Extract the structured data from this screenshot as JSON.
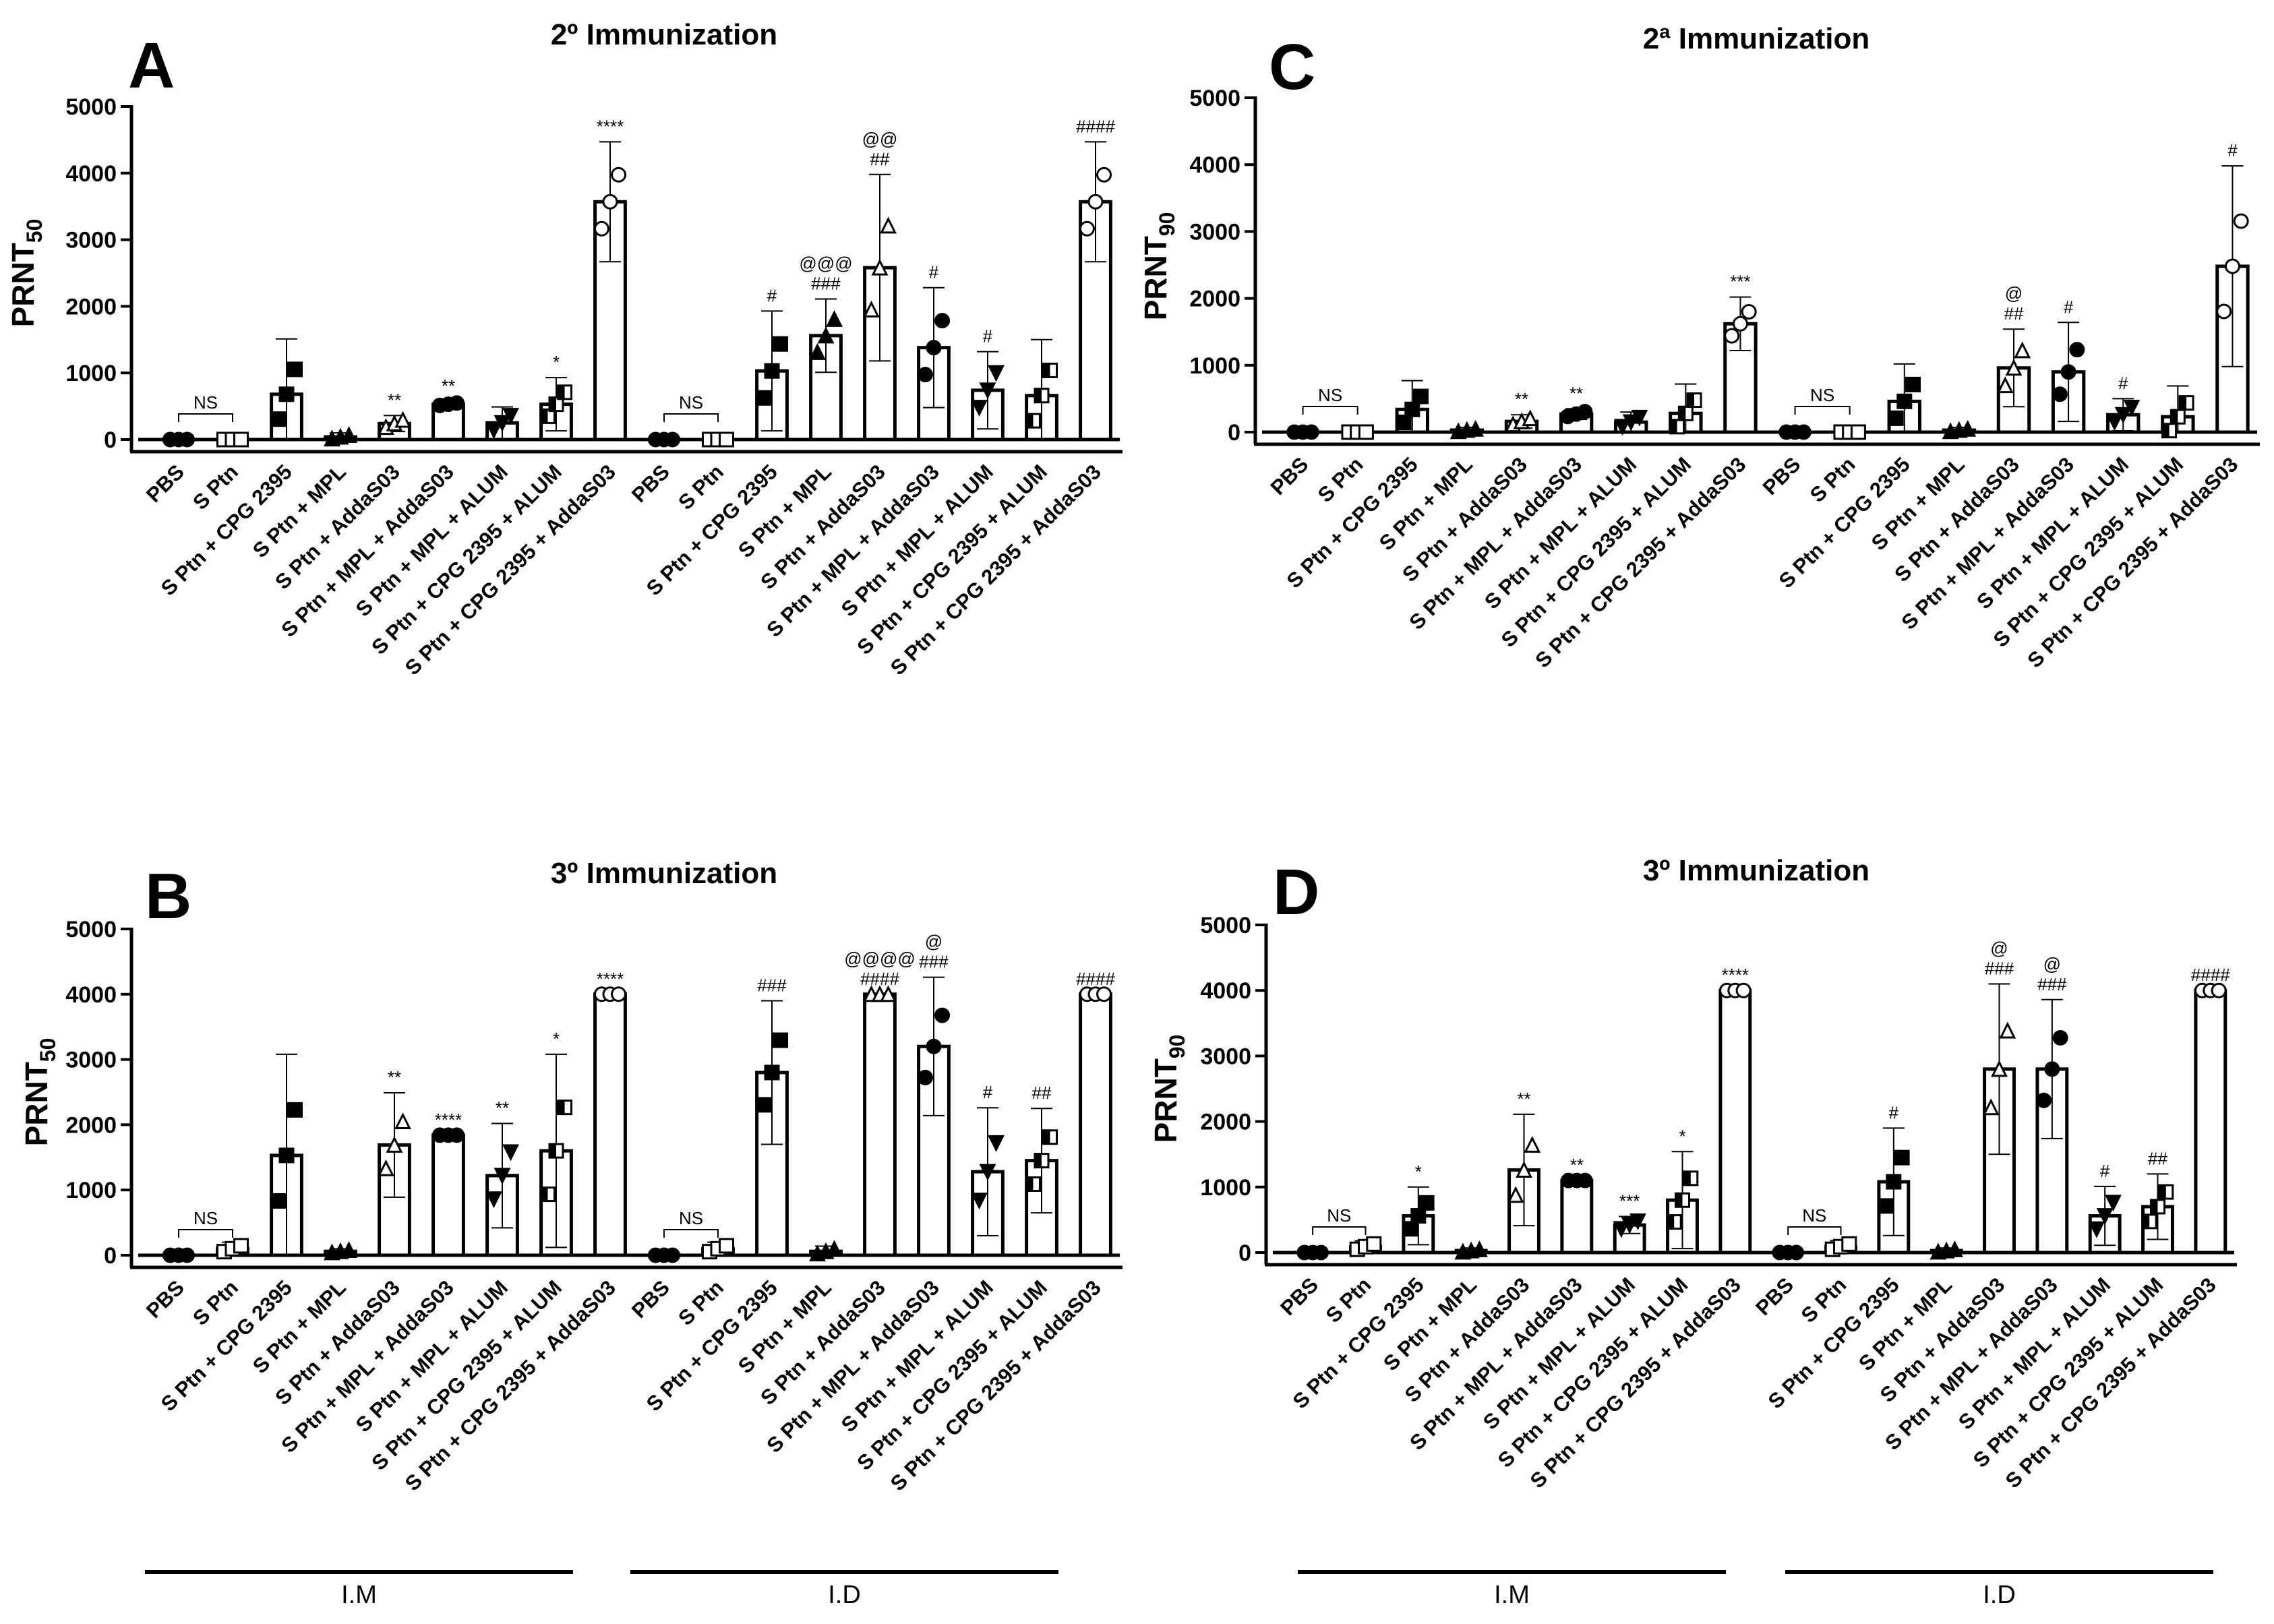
{
  "routes": {
    "im": "I.M",
    "id": "I.D"
  },
  "chart_data": [
    {
      "panel": "A",
      "type": "bar",
      "title": "2º Immunization",
      "ylabel": "PRNT",
      "ylabel_sub": "50",
      "ylim": [
        0,
        5000
      ],
      "yticks": [
        0,
        1000,
        2000,
        3000,
        4000,
        5000
      ],
      "ns_label": "NS",
      "categories": [
        "PBS",
        "S Ptn",
        "S Ptn + CPG 2395",
        "S Ptn + MPL",
        "S Ptn + AddaS03",
        "S Ptn + MPL + AddaS03",
        "S Ptn + MPL + ALUM",
        "S Ptn + CPG 2395 + ALUM",
        "S Ptn + CPG 2395 + AddaS03",
        "PBS",
        "S Ptn",
        "S Ptn + CPG 2395",
        "S Ptn + MPL",
        "S Ptn + AddaS03",
        "S Ptn + MPL + AddaS03",
        "S Ptn + MPL + ALUM",
        "S Ptn + CPG 2395 + ALUM",
        "S Ptn + CPG 2395 + AddaS03"
      ],
      "values": [
        0,
        0,
        680,
        40,
        240,
        530,
        250,
        530,
        3570,
        0,
        0,
        1030,
        1560,
        2580,
        1380,
        740,
        660,
        3570
      ],
      "errors": [
        0,
        0,
        830,
        60,
        120,
        40,
        240,
        400,
        900,
        0,
        0,
        900,
        550,
        1400,
        900,
        580,
        840,
        900
      ],
      "significance_top": [
        "",
        "",
        "",
        "",
        "**",
        "**",
        "",
        "*",
        "****",
        "",
        "",
        "#",
        "###",
        "##",
        "#",
        "#",
        "",
        "####"
      ],
      "significance_at": [
        "",
        "",
        "",
        "",
        "",
        "",
        "",
        "",
        "",
        "",
        "",
        "",
        "@@@",
        "@@",
        "",
        "",
        "",
        ""
      ]
    },
    {
      "panel": "B",
      "type": "bar",
      "title": "3º Immunization",
      "ylabel": "PRNT",
      "ylabel_sub": "50",
      "ylim": [
        0,
        5000
      ],
      "yticks": [
        0,
        1000,
        2000,
        3000,
        4000,
        5000
      ],
      "ns_label": "NS",
      "categories": [
        "PBS",
        "S Ptn",
        "S Ptn + CPG 2395",
        "S Ptn + MPL",
        "S Ptn + AddaS03",
        "S Ptn + MPL + AddaS03",
        "S Ptn + MPL + ALUM",
        "S Ptn + CPG 2395 + ALUM",
        "S Ptn + CPG 2395 + AddaS03",
        "PBS",
        "S Ptn",
        "S Ptn + CPG 2395",
        "S Ptn + MPL",
        "S Ptn + AddaS03",
        "S Ptn + MPL + AddaS03",
        "S Ptn + MPL + ALUM",
        "S Ptn + CPG 2395 + ALUM",
        "S Ptn + CPG 2395 + AddaS03"
      ],
      "values": [
        0,
        100,
        1530,
        60,
        1690,
        1840,
        1220,
        1600,
        4000,
        0,
        100,
        2800,
        60,
        4000,
        3200,
        1280,
        1450,
        4000
      ],
      "errors": [
        0,
        100,
        1550,
        40,
        800,
        0,
        800,
        1480,
        0,
        0,
        100,
        1100,
        80,
        0,
        1060,
        980,
        800,
        0
      ],
      "significance_top": [
        "",
        "",
        "",
        "",
        "**",
        "****",
        "**",
        "*",
        "****",
        "",
        "",
        "###",
        "",
        "####",
        "###",
        "#",
        "##",
        "####"
      ],
      "significance_at": [
        "",
        "",
        "",
        "",
        "",
        "",
        "",
        "",
        "",
        "",
        "",
        "",
        "",
        "@@@@",
        "@",
        "",
        "",
        ""
      ]
    },
    {
      "panel": "C",
      "type": "bar",
      "title": "2ª Immunization",
      "ylabel": "PRNT",
      "ylabel_sub": "90",
      "ylim": [
        0,
        5000
      ],
      "yticks": [
        0,
        1000,
        2000,
        3000,
        4000,
        5000
      ],
      "ns_label": "NS",
      "categories": [
        "PBS",
        "S Ptn",
        "S Ptn + CPG 2395",
        "S Ptn + MPL",
        "S Ptn + AddaS03",
        "S Ptn + MPL + AddaS03",
        "S Ptn + MPL + ALUM",
        "S Ptn + CPG 2395 + ALUM",
        "S Ptn + CPG 2395 + AddaS03",
        "PBS",
        "S Ptn",
        "S Ptn + CPG 2395",
        "S Ptn + MPL",
        "S Ptn + AddaS03",
        "S Ptn + MPL + AddaS03",
        "S Ptn + MPL + ALUM",
        "S Ptn + CPG 2395 + ALUM",
        "S Ptn + CPG 2395 + AddaS03"
      ],
      "values": [
        0,
        0,
        340,
        30,
        160,
        270,
        150,
        280,
        1620,
        0,
        0,
        460,
        30,
        960,
        900,
        260,
        230,
        2480
      ],
      "errors": [
        0,
        0,
        430,
        40,
        100,
        80,
        150,
        440,
        400,
        0,
        0,
        560,
        40,
        580,
        740,
        240,
        460,
        1500
      ],
      "significance_top": [
        "",
        "",
        "",
        "",
        "**",
        "**",
        "",
        "",
        "***",
        "",
        "",
        "",
        "",
        "##",
        "#",
        "#",
        "",
        "#"
      ],
      "significance_at": [
        "",
        "",
        "",
        "",
        "",
        "",
        "",
        "",
        "",
        "",
        "",
        "",
        "",
        "@",
        "",
        "",
        "",
        ""
      ]
    },
    {
      "panel": "D",
      "type": "bar",
      "title": "3º Immunization",
      "ylabel": "PRNT",
      "ylabel_sub": "90",
      "ylim": [
        0,
        5000
      ],
      "yticks": [
        0,
        1000,
        2000,
        3000,
        4000,
        5000
      ],
      "ns_label": "NS",
      "categories": [
        "PBS",
        "S Ptn",
        "S Ptn + CPG 2395",
        "S Ptn + MPL",
        "S Ptn + AddaS03",
        "S Ptn + MPL + AddaS03",
        "S Ptn + MPL + ALUM",
        "S Ptn + CPG 2395 + ALUM",
        "S Ptn + CPG 2395 + AddaS03",
        "PBS",
        "S Ptn",
        "S Ptn + CPG 2395",
        "S Ptn + MPL",
        "S Ptn + AddaS03",
        "S Ptn + MPL + AddaS03",
        "S Ptn + MPL + ALUM",
        "S Ptn + CPG 2395 + ALUM",
        "S Ptn + CPG 2395 + AddaS03"
      ],
      "values": [
        0,
        90,
        560,
        30,
        1260,
        1100,
        420,
        800,
        4000,
        0,
        90,
        1080,
        30,
        2800,
        2800,
        560,
        700,
        4000
      ],
      "errors": [
        0,
        90,
        440,
        40,
        850,
        0,
        130,
        740,
        0,
        0,
        90,
        820,
        40,
        1300,
        1060,
        450,
        500,
        0
      ],
      "significance_top": [
        "",
        "",
        "*",
        "",
        "**",
        "**",
        "***",
        "*",
        "****",
        "",
        "",
        "#",
        "",
        "###",
        "###",
        "#",
        "##",
        "####"
      ],
      "significance_at": [
        "",
        "",
        "",
        "",
        "",
        "",
        "",
        "",
        "",
        "",
        "",
        "",
        "",
        "@",
        "@",
        "",
        "",
        ""
      ]
    }
  ]
}
